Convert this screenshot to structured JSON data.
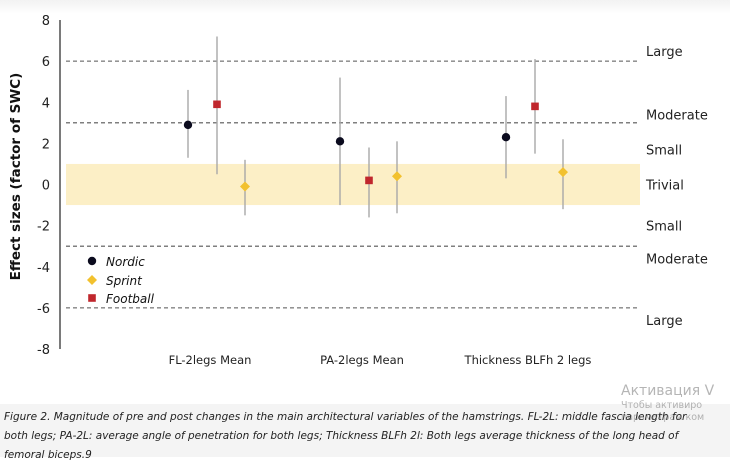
{
  "chart_data": {
    "type": "scatter",
    "ylabel": "Effect sizes (factor of SWC)",
    "ylim": [
      -8,
      8
    ],
    "yticks": [
      8,
      6,
      4,
      2,
      0,
      -2,
      -4,
      -6,
      -8
    ],
    "categories": [
      "FL-2legs Mean",
      "PA-2legs Mean",
      "Thickness BLFh 2 legs"
    ],
    "reference_lines": [
      6,
      3,
      -3,
      -6
    ],
    "trivial_band": [
      -1,
      1
    ],
    "zones": [
      {
        "label": "Large",
        "y": 6.5
      },
      {
        "label": "Moderate",
        "y": 3.4
      },
      {
        "label": "Small",
        "y": 1.7
      },
      {
        "label": "Trivial",
        "y": 0
      },
      {
        "label": "Small",
        "y": -2
      },
      {
        "label": "Moderate",
        "y": -3.6
      },
      {
        "label": "Large",
        "y": -6.6
      }
    ],
    "series": [
      {
        "name": "Nordic",
        "marker": "circle",
        "color": "#0b0b1e",
        "points": [
          {
            "category": "FL-2legs Mean",
            "y": 2.9,
            "low": 1.3,
            "high": 4.6
          },
          {
            "category": "PA-2legs Mean",
            "y": 2.1,
            "low": -1.0,
            "high": 5.2
          },
          {
            "category": "Thickness BLFh 2 legs",
            "y": 2.3,
            "low": 0.3,
            "high": 4.3
          }
        ]
      },
      {
        "name": "Football",
        "marker": "square",
        "color": "#c0272d",
        "points": [
          {
            "category": "FL-2legs Mean",
            "y": 3.9,
            "low": 0.5,
            "high": 7.2
          },
          {
            "category": "PA-2legs Mean",
            "y": 0.2,
            "low": -1.6,
            "high": 1.8
          },
          {
            "category": "Thickness BLFh 2 legs",
            "y": 3.8,
            "low": 1.5,
            "high": 6.1
          }
        ]
      },
      {
        "name": "Sprint",
        "marker": "diamond",
        "color": "#f2c12e",
        "points": [
          {
            "category": "FL-2legs Mean",
            "y": -0.1,
            "low": -1.5,
            "high": 1.2
          },
          {
            "category": "PA-2legs Mean",
            "y": 0.4,
            "low": -1.4,
            "high": 2.1
          },
          {
            "category": "Thickness BLFh 2 legs",
            "y": 0.6,
            "low": -1.2,
            "high": 2.2
          }
        ]
      }
    ],
    "legend": [
      {
        "name": "Nordic",
        "marker": "circle",
        "color": "#0b0b1e"
      },
      {
        "name": "Sprint",
        "marker": "diamond",
        "color": "#f2c12e"
      },
      {
        "name": "Football",
        "marker": "square",
        "color": "#c0272d"
      }
    ],
    "legend_position": "left",
    "colors": {
      "band": "#fcefc6",
      "errorbar": "#a8a8a8",
      "dashed": "#555555",
      "axis": "#222222"
    }
  },
  "caption": "Figure 2. Magnitude of pre and post changes in the main architectural variables of the hamstrings. FL-2L: middle fascia length for both legs; PA-2L: average angle of penetration for both legs; Thickness BLFh 2l: Both legs average thickness of the long head of femoral biceps.9",
  "watermark": {
    "title": "Активация V",
    "line1": "Чтобы активиро",
    "line2": "параметрам ком"
  }
}
